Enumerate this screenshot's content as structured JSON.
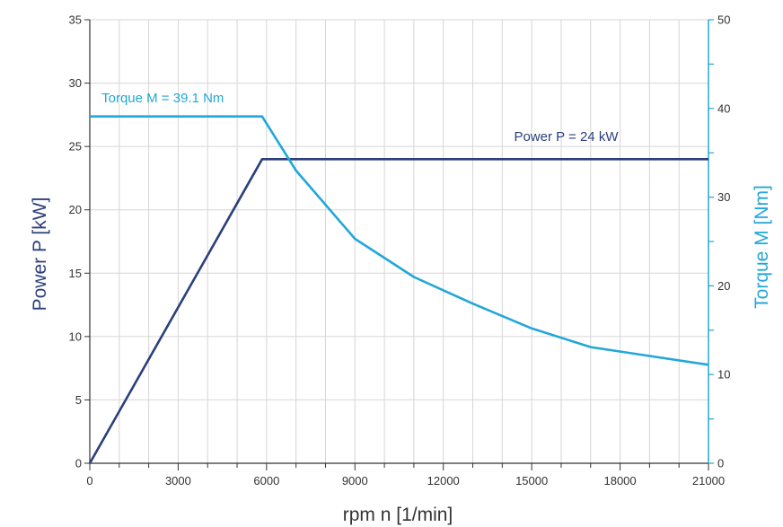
{
  "chart_data": {
    "type": "line",
    "xlabel": "rpm n [1/min]",
    "ylabel_left": "Power P [kW]",
    "ylabel_right": "Torque M [Nm]",
    "xlim": [
      0,
      21000
    ],
    "ylim_left": [
      0,
      35
    ],
    "ylim_right": [
      0,
      50
    ],
    "x_ticks": [
      0,
      3000,
      6000,
      9000,
      12000,
      15000,
      18000,
      21000
    ],
    "x_minor_step": 1000,
    "y_left_ticks": [
      0,
      5,
      10,
      15,
      20,
      25,
      30,
      35
    ],
    "y_right_ticks": [
      0,
      10,
      20,
      30,
      40,
      50
    ],
    "y_right_minor_step": 5,
    "grid": true,
    "colors": {
      "power": "#2b3f7c",
      "torque": "#22a7d9",
      "grid": "#d6d6d6",
      "axis": "#333333"
    },
    "series": [
      {
        "key": "power",
        "axis": "left",
        "x": [
          0,
          5850,
          21000
        ],
        "y": [
          0,
          24,
          24
        ]
      },
      {
        "key": "torque",
        "axis": "right",
        "x": [
          0,
          5850,
          7000,
          9000,
          11000,
          13000,
          15000,
          17000,
          19000,
          21000
        ],
        "y": [
          39.1,
          39.1,
          33,
          25.3,
          21,
          18,
          15.2,
          13.1,
          12.1,
          11.1
        ]
      }
    ],
    "annotations": {
      "torque": {
        "text": "Torque M = 39.1 Nm",
        "x": 400,
        "y_right": 41.2
      },
      "power": {
        "text": "Power P = 24 kW",
        "x": 14400,
        "y_left": 25.8
      }
    }
  }
}
